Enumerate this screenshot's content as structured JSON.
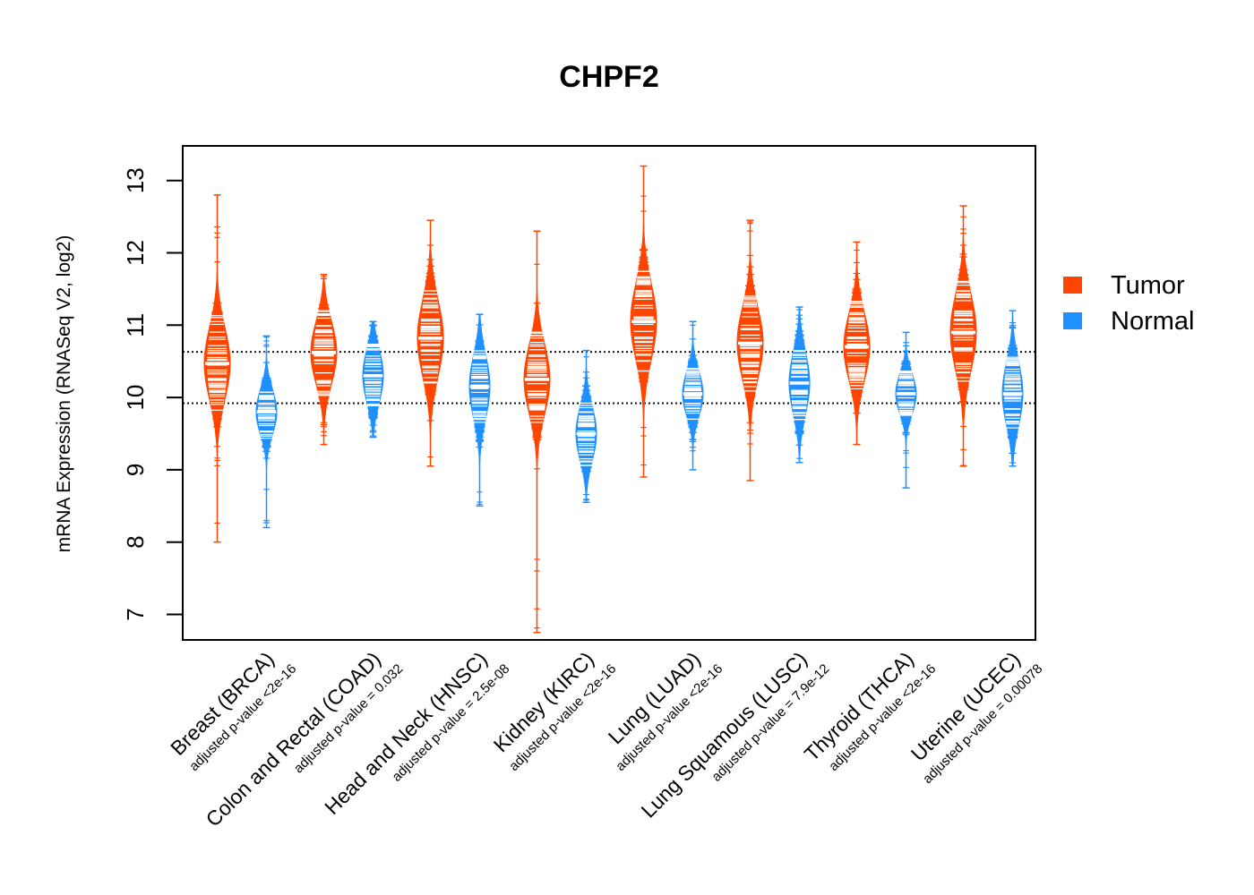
{
  "chart_data": {
    "type": "violin",
    "title": "CHPF2",
    "ylabel": "mRNA Expression (RNASeq V2, log2)",
    "xlabel": "",
    "ylim": [
      6.65,
      13.45
    ],
    "yticks": [
      7,
      8,
      9,
      10,
      11,
      12,
      13
    ],
    "reference_lines": [
      10.63,
      9.92
    ],
    "legend": {
      "placement": "right",
      "entries": [
        {
          "name": "Tumor",
          "color": "#FF4500"
        },
        {
          "name": "Normal",
          "color": "#1E90FF"
        }
      ]
    },
    "categories": [
      {
        "label": "Breast (BRCA)",
        "pvalue": "adjusted p-value <2e-16",
        "tumor": {
          "min": 8.0,
          "max": 12.8,
          "median": 10.47,
          "core_low": 9.7,
          "core_high": 11.3
        },
        "normal": {
          "min": 8.2,
          "max": 10.85,
          "median": 9.8,
          "core_low": 9.3,
          "core_high": 10.3
        }
      },
      {
        "label": "Colon and Rectal (COAD)",
        "pvalue": "adjusted p-value = 0.032",
        "tumor": {
          "min": 9.35,
          "max": 11.7,
          "median": 10.62,
          "core_low": 9.9,
          "core_high": 11.3
        },
        "normal": {
          "min": 9.45,
          "max": 11.05,
          "median": 10.3,
          "core_low": 9.7,
          "core_high": 10.9
        }
      },
      {
        "label": "Head and Neck (HNSC)",
        "pvalue": "adjusted p-value = 2.5e-08",
        "tumor": {
          "min": 9.05,
          "max": 12.45,
          "median": 10.82,
          "core_low": 10.0,
          "core_high": 11.7
        },
        "normal": {
          "min": 8.5,
          "max": 11.15,
          "median": 10.15,
          "core_low": 9.4,
          "core_high": 10.8
        }
      },
      {
        "label": "Kidney (KIRC)",
        "pvalue": "adjusted p-value <2e-16",
        "tumor": {
          "min": 6.75,
          "max": 12.3,
          "median": 10.25,
          "core_low": 9.4,
          "core_high": 10.95
        },
        "normal": {
          "min": 8.55,
          "max": 10.65,
          "median": 9.5,
          "core_low": 9.0,
          "core_high": 10.2
        }
      },
      {
        "label": "Lung (LUAD)",
        "pvalue": "adjusted p-value <2e-16",
        "tumor": {
          "min": 8.9,
          "max": 13.2,
          "median": 11.05,
          "core_low": 10.2,
          "core_high": 11.9
        },
        "normal": {
          "min": 9.0,
          "max": 11.05,
          "median": 10.05,
          "core_low": 9.6,
          "core_high": 10.6
        }
      },
      {
        "label": "Lung Squamous (LUSC)",
        "pvalue": "adjusted p-value = 7.9e-12",
        "tumor": {
          "min": 8.85,
          "max": 12.45,
          "median": 10.75,
          "core_low": 10.0,
          "core_high": 11.6
        },
        "normal": {
          "min": 9.1,
          "max": 11.25,
          "median": 10.2,
          "core_low": 9.5,
          "core_high": 10.9
        }
      },
      {
        "label": "Thyroid (THCA)",
        "pvalue": "adjusted p-value <2e-16",
        "tumor": {
          "min": 9.35,
          "max": 12.15,
          "median": 10.7,
          "core_low": 10.0,
          "core_high": 11.5
        },
        "normal": {
          "min": 8.75,
          "max": 10.9,
          "median": 10.05,
          "core_low": 9.6,
          "core_high": 10.5
        }
      },
      {
        "label": "Uterine (UCEC)",
        "pvalue": "adjusted p-value = 0.00078",
        "tumor": {
          "min": 9.05,
          "max": 12.65,
          "median": 10.9,
          "core_low": 10.1,
          "core_high": 11.8
        },
        "normal": {
          "min": 9.05,
          "max": 11.2,
          "median": 10.05,
          "core_low": 9.4,
          "core_high": 10.8
        }
      }
    ]
  }
}
